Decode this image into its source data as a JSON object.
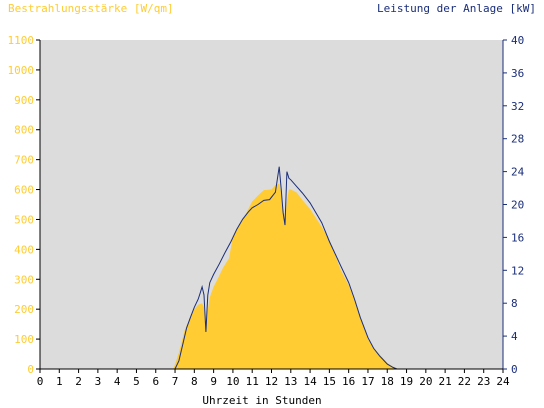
{
  "chart_data": {
    "type": "area",
    "title_left": "Bestrahlungsstärke [W/qm]",
    "title_right": "Leistung der Anlage [kW]",
    "xlabel": "Uhrzeit in Stunden",
    "x_ticks": [
      "0",
      "1",
      "2",
      "3",
      "4",
      "5",
      "6",
      "7",
      "8",
      "9",
      "10",
      "11",
      "12",
      "13",
      "14",
      "15",
      "16",
      "17",
      "18",
      "19",
      "20",
      "21",
      "22",
      "23",
      "24"
    ],
    "y_left_ticks": [
      "0",
      "100",
      "200",
      "300",
      "400",
      "500",
      "600",
      "700",
      "800",
      "900",
      "1000",
      "1100"
    ],
    "y_right_ticks": [
      "0",
      "4",
      "8",
      "12",
      "16",
      "20",
      "24",
      "28",
      "32",
      "36",
      "40"
    ],
    "xlim": [
      0,
      24
    ],
    "ylim_left": [
      0,
      1100
    ],
    "ylim_right": [
      0,
      40
    ],
    "grid": false,
    "colors": {
      "background": "#dcdcdc",
      "area": "#ffcc33",
      "line": "#1a2e7a",
      "left_axis_text": "#ffcc33",
      "right_axis_text": "#1a2e7a",
      "axis": "#000000"
    },
    "series": [
      {
        "name": "Bestrahlungsstärke [W/qm]",
        "type": "area",
        "axis": "left",
        "x": [
          0,
          6.9,
          7.0,
          7.2,
          7.5,
          7.8,
          8.0,
          8.2,
          8.4,
          8.5,
          8.6,
          8.7,
          8.8,
          9.0,
          9.2,
          9.5,
          9.8,
          10.0,
          10.3,
          10.6,
          11.0,
          11.3,
          11.6,
          12.0,
          12.2,
          12.4,
          12.5,
          12.6,
          12.7,
          12.8,
          12.9,
          13.0,
          13.3,
          13.6,
          14.0,
          14.3,
          14.6,
          15.0,
          15.3,
          15.6,
          16.0,
          16.3,
          16.6,
          17.0,
          17.3,
          17.6,
          18.0,
          18.3,
          18.6,
          24
        ],
        "y": [
          0,
          0,
          15,
          55,
          130,
          175,
          200,
          215,
          220,
          205,
          130,
          195,
          240,
          275,
          300,
          340,
          370,
          445,
          480,
          510,
          560,
          580,
          598,
          600,
          615,
          620,
          590,
          545,
          500,
          560,
          600,
          600,
          590,
          565,
          535,
          505,
          475,
          430,
          380,
          330,
          280,
          230,
          175,
          100,
          70,
          50,
          20,
          8,
          0,
          0
        ]
      },
      {
        "name": "Leistung der Anlage [kW]",
        "type": "line",
        "axis": "right",
        "x": [
          0,
          7.0,
          7.2,
          7.4,
          7.6,
          7.8,
          8.0,
          8.2,
          8.3,
          8.4,
          8.5,
          8.6,
          8.7,
          8.8,
          9.0,
          9.3,
          9.6,
          9.9,
          10.2,
          10.5,
          10.8,
          11.0,
          11.3,
          11.6,
          11.9,
          12.2,
          12.4,
          12.5,
          12.6,
          12.7,
          12.8,
          12.9,
          13.0,
          13.3,
          13.6,
          14.0,
          14.3,
          14.6,
          15.0,
          15.3,
          15.6,
          16.0,
          16.3,
          16.6,
          17.0,
          17.3,
          17.6,
          18.0,
          18.3,
          18.5,
          18.7,
          24
        ],
        "y": [
          0,
          0,
          1,
          3,
          5,
          6.3,
          7.5,
          8.5,
          9.2,
          10,
          9,
          4.5,
          9,
          10.5,
          11.5,
          12.8,
          14.2,
          15.5,
          17,
          18.2,
          19.1,
          19.6,
          20,
          20.5,
          20.6,
          21.5,
          24.6,
          22,
          19,
          17.5,
          24,
          23.2,
          23,
          22.2,
          21.4,
          20.2,
          19,
          17.8,
          15.5,
          14,
          12.5,
          10.5,
          8.5,
          6.3,
          3.8,
          2.5,
          1.6,
          0.6,
          0.2,
          0,
          0,
          0
        ]
      }
    ]
  }
}
